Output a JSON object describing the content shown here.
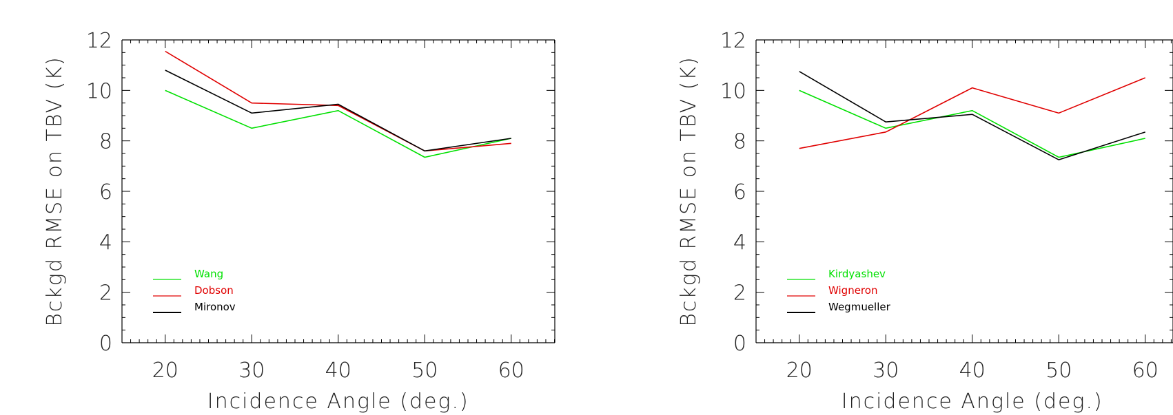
{
  "chart_data": [
    {
      "type": "line",
      "title": "",
      "xlabel": "Incidence Angle (deg.)",
      "ylabel": "Bckgd RMSE on TBV (K)",
      "xlim": [
        15,
        65
      ],
      "ylim": [
        0,
        12
      ],
      "xticks": [
        20,
        30,
        40,
        50,
        60
      ],
      "yticks": [
        0,
        2,
        4,
        6,
        8,
        10,
        12
      ],
      "x": [
        20,
        30,
        40,
        50,
        60
      ],
      "legend_position": "bottom-left",
      "series": [
        {
          "name": "Wang",
          "color": "#00e000",
          "values": [
            10.0,
            8.5,
            9.2,
            7.35,
            8.1
          ]
        },
        {
          "name": "Dobson",
          "color": "#e00000",
          "values": [
            11.55,
            9.5,
            9.4,
            7.6,
            7.9
          ]
        },
        {
          "name": "Mironov",
          "color": "#000000",
          "values": [
            10.8,
            9.1,
            9.45,
            7.6,
            8.1
          ]
        }
      ]
    },
    {
      "type": "line",
      "title": "",
      "xlabel": "Incidence Angle (deg.)",
      "ylabel": "Bckgd RMSE on TBV (K)",
      "xlim": [
        15,
        65
      ],
      "ylim": [
        0,
        12
      ],
      "xticks": [
        20,
        30,
        40,
        50,
        60
      ],
      "yticks": [
        0,
        2,
        4,
        6,
        8,
        10,
        12
      ],
      "x": [
        20,
        30,
        40,
        50,
        60
      ],
      "legend_position": "bottom-left",
      "series": [
        {
          "name": "Kirdyashev",
          "color": "#00e000",
          "values": [
            10.0,
            8.5,
            9.2,
            7.35,
            8.1
          ]
        },
        {
          "name": "Wigneron",
          "color": "#e00000",
          "values": [
            7.7,
            8.35,
            10.1,
            9.1,
            10.5
          ]
        },
        {
          "name": "Wegmueller",
          "color": "#000000",
          "values": [
            10.75,
            8.75,
            9.05,
            7.25,
            8.35
          ]
        }
      ]
    }
  ]
}
